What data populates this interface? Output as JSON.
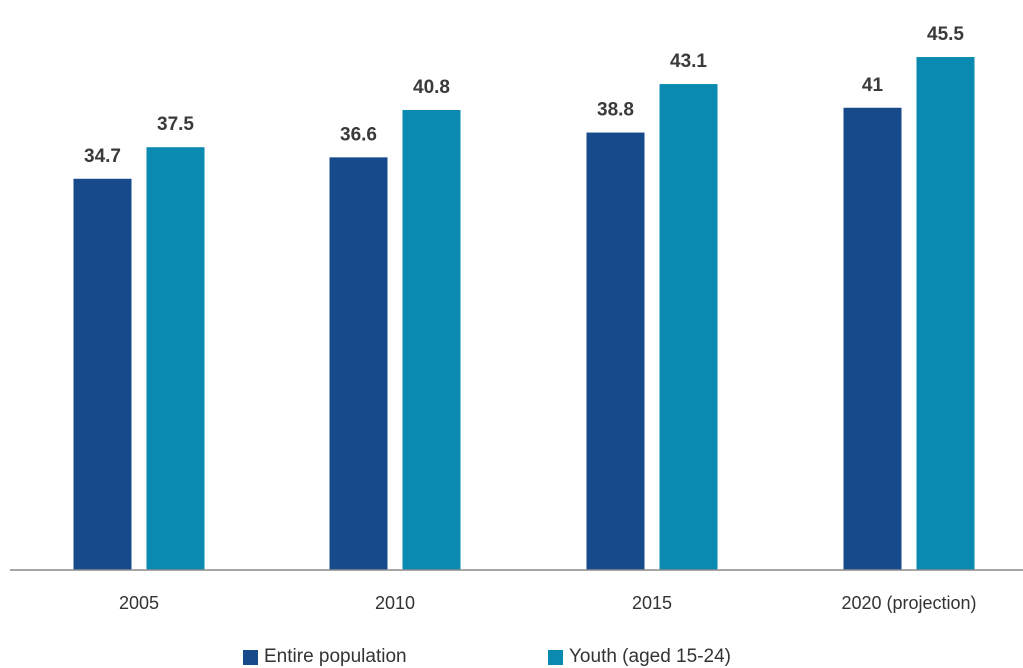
{
  "chart_data": {
    "type": "bar",
    "categories": [
      "2005",
      "2010",
      "2015",
      "2020 (projection)"
    ],
    "series": [
      {
        "name": "Entire population",
        "values": [
          34.7,
          36.6,
          38.8,
          41
        ],
        "labels": [
          "34.7",
          "36.6",
          "38.8",
          "41"
        ],
        "color": "#174a8b"
      },
      {
        "name": "Youth (aged 15-24)",
        "values": [
          37.5,
          40.8,
          43.1,
          45.5
        ],
        "labels": [
          "37.5",
          "40.8",
          "43.1",
          "45.5"
        ],
        "color": "#0a8ab1"
      }
    ],
    "ylim": [
      0,
      46.3
    ],
    "grid": false,
    "legend_position": "bottom"
  }
}
